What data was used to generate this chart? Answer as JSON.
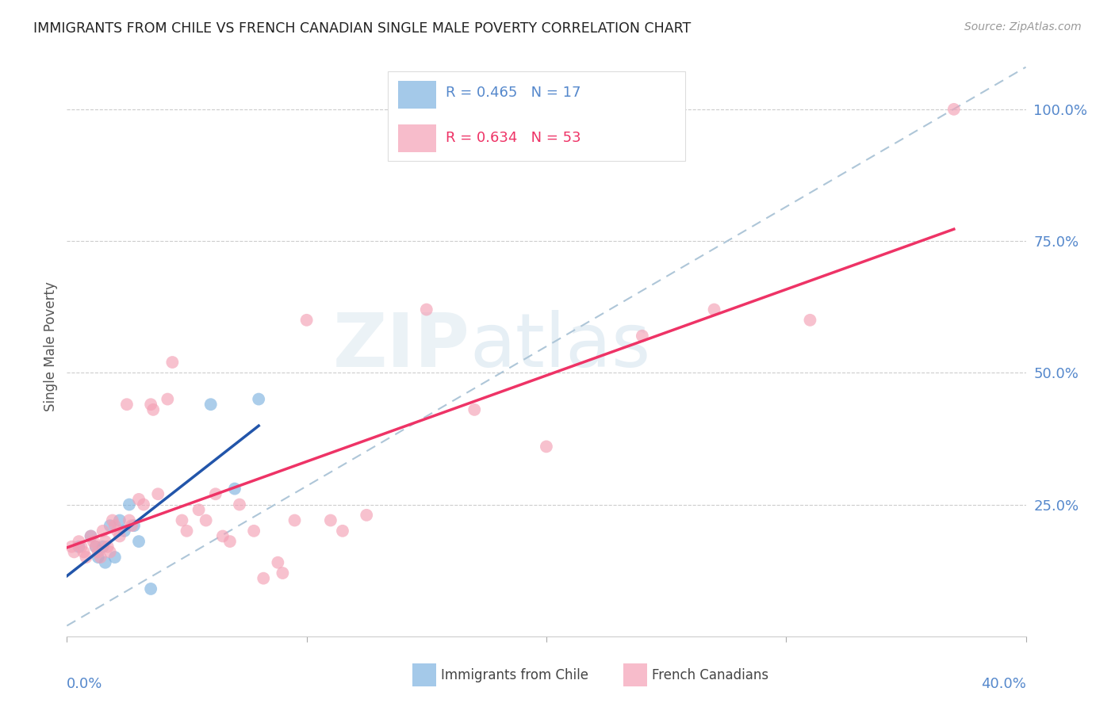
{
  "title": "IMMIGRANTS FROM CHILE VS FRENCH CANADIAN SINGLE MALE POVERTY CORRELATION CHART",
  "source": "Source: ZipAtlas.com",
  "ylabel": "Single Male Poverty",
  "legend_blue_r": "R = 0.465",
  "legend_blue_n": "N = 17",
  "legend_pink_r": "R = 0.634",
  "legend_pink_n": "N = 53",
  "watermark": "ZIPatlas",
  "chile_points": [
    [
      0.005,
      0.17
    ],
    [
      0.01,
      0.19
    ],
    [
      0.012,
      0.17
    ],
    [
      0.013,
      0.15
    ],
    [
      0.015,
      0.17
    ],
    [
      0.016,
      0.14
    ],
    [
      0.018,
      0.21
    ],
    [
      0.02,
      0.15
    ],
    [
      0.022,
      0.22
    ],
    [
      0.024,
      0.2
    ],
    [
      0.026,
      0.25
    ],
    [
      0.028,
      0.21
    ],
    [
      0.03,
      0.18
    ],
    [
      0.035,
      0.09
    ],
    [
      0.06,
      0.44
    ],
    [
      0.07,
      0.28
    ],
    [
      0.08,
      0.45
    ]
  ],
  "french_points": [
    [
      0.002,
      0.17
    ],
    [
      0.003,
      0.16
    ],
    [
      0.005,
      0.18
    ],
    [
      0.006,
      0.17
    ],
    [
      0.007,
      0.16
    ],
    [
      0.008,
      0.15
    ],
    [
      0.01,
      0.19
    ],
    [
      0.011,
      0.18
    ],
    [
      0.012,
      0.17
    ],
    [
      0.013,
      0.16
    ],
    [
      0.014,
      0.15
    ],
    [
      0.015,
      0.2
    ],
    [
      0.016,
      0.18
    ],
    [
      0.017,
      0.17
    ],
    [
      0.018,
      0.16
    ],
    [
      0.019,
      0.22
    ],
    [
      0.02,
      0.21
    ],
    [
      0.021,
      0.2
    ],
    [
      0.022,
      0.19
    ],
    [
      0.025,
      0.44
    ],
    [
      0.026,
      0.22
    ],
    [
      0.027,
      0.21
    ],
    [
      0.03,
      0.26
    ],
    [
      0.032,
      0.25
    ],
    [
      0.035,
      0.44
    ],
    [
      0.036,
      0.43
    ],
    [
      0.038,
      0.27
    ],
    [
      0.042,
      0.45
    ],
    [
      0.044,
      0.52
    ],
    [
      0.048,
      0.22
    ],
    [
      0.05,
      0.2
    ],
    [
      0.055,
      0.24
    ],
    [
      0.058,
      0.22
    ],
    [
      0.062,
      0.27
    ],
    [
      0.065,
      0.19
    ],
    [
      0.068,
      0.18
    ],
    [
      0.072,
      0.25
    ],
    [
      0.078,
      0.2
    ],
    [
      0.082,
      0.11
    ],
    [
      0.088,
      0.14
    ],
    [
      0.09,
      0.12
    ],
    [
      0.095,
      0.22
    ],
    [
      0.1,
      0.6
    ],
    [
      0.11,
      0.22
    ],
    [
      0.115,
      0.2
    ],
    [
      0.125,
      0.23
    ],
    [
      0.15,
      0.62
    ],
    [
      0.17,
      0.43
    ],
    [
      0.2,
      0.36
    ],
    [
      0.24,
      0.57
    ],
    [
      0.27,
      0.62
    ],
    [
      0.31,
      0.6
    ],
    [
      0.37,
      1.0
    ]
  ],
  "xlim": [
    0.0,
    0.4
  ],
  "ylim": [
    0.0,
    1.1
  ],
  "chile_color": "#7eb3e0",
  "french_color": "#f4a0b5",
  "chile_line_color": "#2255aa",
  "french_line_color": "#ee3366",
  "dashed_line_color": "#aec6d8",
  "bg_color": "#ffffff",
  "grid_color": "#cccccc",
  "axis_color": "#5588cc",
  "tick_label_fontsize": 13,
  "label_color": "#555555"
}
